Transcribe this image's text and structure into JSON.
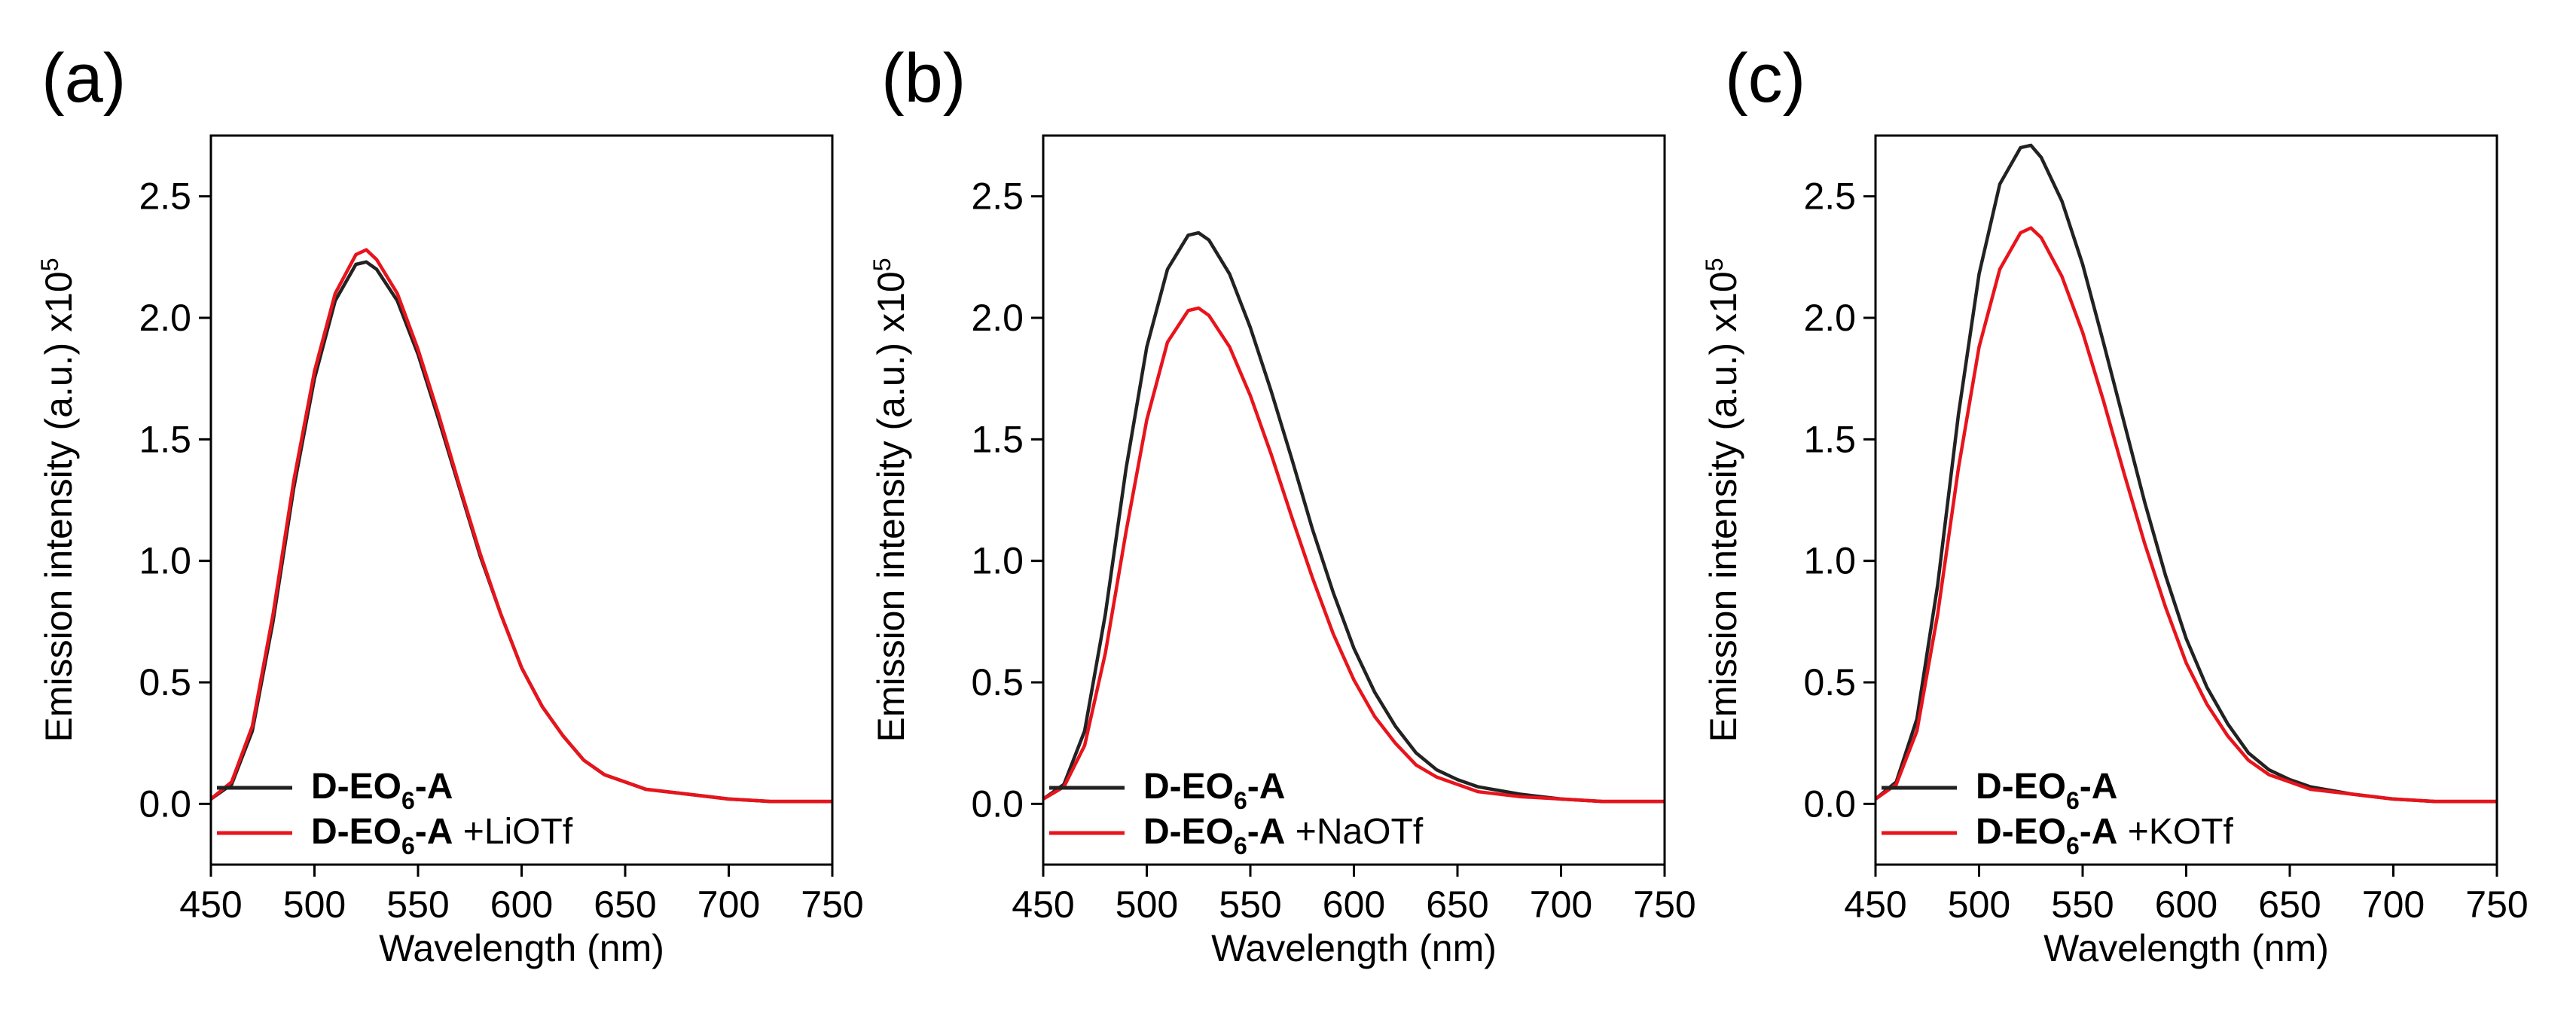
{
  "chart_data": [
    {
      "type": "line",
      "panel_label": "(a)",
      "xlabel": "Wavelength (nm)",
      "ylabel": "Emission intensity (a.u.) x10",
      "ylabel_exponent": "5",
      "xlim": [
        450,
        750
      ],
      "ylim": [
        -0.25,
        2.75
      ],
      "xticks": [
        450,
        500,
        550,
        600,
        650,
        700,
        750
      ],
      "yticks": [
        0.0,
        0.5,
        1.0,
        1.5,
        2.0,
        2.5
      ],
      "ytick_labels": [
        "0.0",
        "0.5",
        "1.0",
        "1.5",
        "2.0",
        "2.5"
      ],
      "legend_position": "bottom-left",
      "series": [
        {
          "legend_parts": [
            "D-EO",
            "6",
            "-A",
            ""
          ],
          "color": "#222222",
          "x": [
            450,
            460,
            470,
            480,
            490,
            500,
            510,
            520,
            525,
            530,
            540,
            550,
            560,
            570,
            580,
            590,
            600,
            610,
            620,
            630,
            640,
            650,
            660,
            680,
            700,
            720,
            750
          ],
          "y": [
            0.02,
            0.08,
            0.3,
            0.75,
            1.3,
            1.75,
            2.07,
            2.22,
            2.23,
            2.2,
            2.07,
            1.85,
            1.58,
            1.3,
            1.02,
            0.78,
            0.56,
            0.4,
            0.28,
            0.18,
            0.12,
            0.09,
            0.06,
            0.04,
            0.02,
            0.01,
            0.01
          ]
        },
        {
          "legend_parts": [
            "D-EO",
            "6",
            "-A",
            " +LiOTf"
          ],
          "color": "#e8141c",
          "x": [
            450,
            460,
            470,
            480,
            490,
            500,
            510,
            520,
            525,
            530,
            540,
            550,
            560,
            570,
            580,
            590,
            600,
            610,
            620,
            630,
            640,
            650,
            660,
            680,
            700,
            720,
            750
          ],
          "y": [
            0.02,
            0.09,
            0.32,
            0.78,
            1.33,
            1.78,
            2.1,
            2.26,
            2.28,
            2.24,
            2.1,
            1.87,
            1.6,
            1.31,
            1.03,
            0.78,
            0.56,
            0.4,
            0.28,
            0.18,
            0.12,
            0.09,
            0.06,
            0.04,
            0.02,
            0.01,
            0.01
          ]
        }
      ]
    },
    {
      "type": "line",
      "panel_label": "(b)",
      "xlabel": "Wavelength (nm)",
      "ylabel": "Emission intensity (a.u.) x10",
      "ylabel_exponent": "5",
      "xlim": [
        450,
        750
      ],
      "ylim": [
        -0.25,
        2.75
      ],
      "xticks": [
        450,
        500,
        550,
        600,
        650,
        700,
        750
      ],
      "yticks": [
        0.0,
        0.5,
        1.0,
        1.5,
        2.0,
        2.5
      ],
      "ytick_labels": [
        "0.0",
        "0.5",
        "1.0",
        "1.5",
        "2.0",
        "2.5"
      ],
      "legend_position": "bottom-left",
      "series": [
        {
          "legend_parts": [
            "D-EO",
            "6",
            "-A",
            ""
          ],
          "color": "#222222",
          "x": [
            450,
            460,
            470,
            480,
            490,
            500,
            510,
            520,
            525,
            530,
            540,
            550,
            560,
            570,
            580,
            590,
            600,
            610,
            620,
            630,
            640,
            650,
            660,
            680,
            700,
            720,
            750
          ],
          "y": [
            0.02,
            0.08,
            0.3,
            0.78,
            1.38,
            1.88,
            2.2,
            2.34,
            2.35,
            2.32,
            2.18,
            1.96,
            1.7,
            1.42,
            1.13,
            0.87,
            0.64,
            0.46,
            0.32,
            0.21,
            0.14,
            0.1,
            0.07,
            0.04,
            0.02,
            0.01,
            0.01
          ]
        },
        {
          "legend_parts": [
            "D-EO",
            "6",
            "-A",
            " +NaOTf"
          ],
          "color": "#e8141c",
          "x": [
            450,
            460,
            470,
            480,
            490,
            500,
            510,
            520,
            525,
            530,
            540,
            550,
            560,
            570,
            580,
            590,
            600,
            610,
            620,
            630,
            640,
            650,
            660,
            680,
            700,
            720,
            750
          ],
          "y": [
            0.02,
            0.07,
            0.24,
            0.62,
            1.12,
            1.58,
            1.9,
            2.03,
            2.04,
            2.01,
            1.88,
            1.68,
            1.44,
            1.18,
            0.93,
            0.7,
            0.51,
            0.36,
            0.25,
            0.16,
            0.11,
            0.08,
            0.05,
            0.03,
            0.02,
            0.01,
            0.01
          ]
        }
      ]
    },
    {
      "type": "line",
      "panel_label": "(c)",
      "xlabel": "Wavelength (nm)",
      "ylabel": "Emission intensity (a.u.) x10",
      "ylabel_exponent": "5",
      "xlim": [
        450,
        750
      ],
      "ylim": [
        -0.25,
        2.75
      ],
      "xticks": [
        450,
        500,
        550,
        600,
        650,
        700,
        750
      ],
      "yticks": [
        0.0,
        0.5,
        1.0,
        1.5,
        2.0,
        2.5
      ],
      "ytick_labels": [
        "0.0",
        "0.5",
        "1.0",
        "1.5",
        "2.0",
        "2.5"
      ],
      "legend_position": "bottom-left",
      "series": [
        {
          "legend_parts": [
            "D-EO",
            "6",
            "-A",
            ""
          ],
          "color": "#222222",
          "x": [
            450,
            460,
            470,
            480,
            490,
            500,
            510,
            520,
            525,
            530,
            540,
            550,
            560,
            570,
            580,
            590,
            600,
            610,
            620,
            630,
            640,
            650,
            660,
            680,
            700,
            720,
            750
          ],
          "y": [
            0.02,
            0.09,
            0.35,
            0.9,
            1.6,
            2.18,
            2.55,
            2.7,
            2.71,
            2.66,
            2.48,
            2.22,
            1.9,
            1.57,
            1.24,
            0.94,
            0.68,
            0.48,
            0.33,
            0.21,
            0.14,
            0.1,
            0.07,
            0.04,
            0.02,
            0.01,
            0.01
          ]
        },
        {
          "legend_parts": [
            "D-EO",
            "6",
            "-A",
            " +KOTf"
          ],
          "color": "#e8141c",
          "x": [
            450,
            460,
            470,
            480,
            490,
            500,
            510,
            520,
            525,
            530,
            540,
            550,
            560,
            570,
            580,
            590,
            600,
            610,
            620,
            630,
            640,
            650,
            660,
            680,
            700,
            720,
            750
          ],
          "y": [
            0.02,
            0.08,
            0.3,
            0.78,
            1.38,
            1.88,
            2.2,
            2.35,
            2.37,
            2.33,
            2.17,
            1.94,
            1.66,
            1.36,
            1.07,
            0.81,
            0.58,
            0.41,
            0.28,
            0.18,
            0.12,
            0.09,
            0.06,
            0.04,
            0.02,
            0.01,
            0.01
          ]
        }
      ]
    }
  ]
}
